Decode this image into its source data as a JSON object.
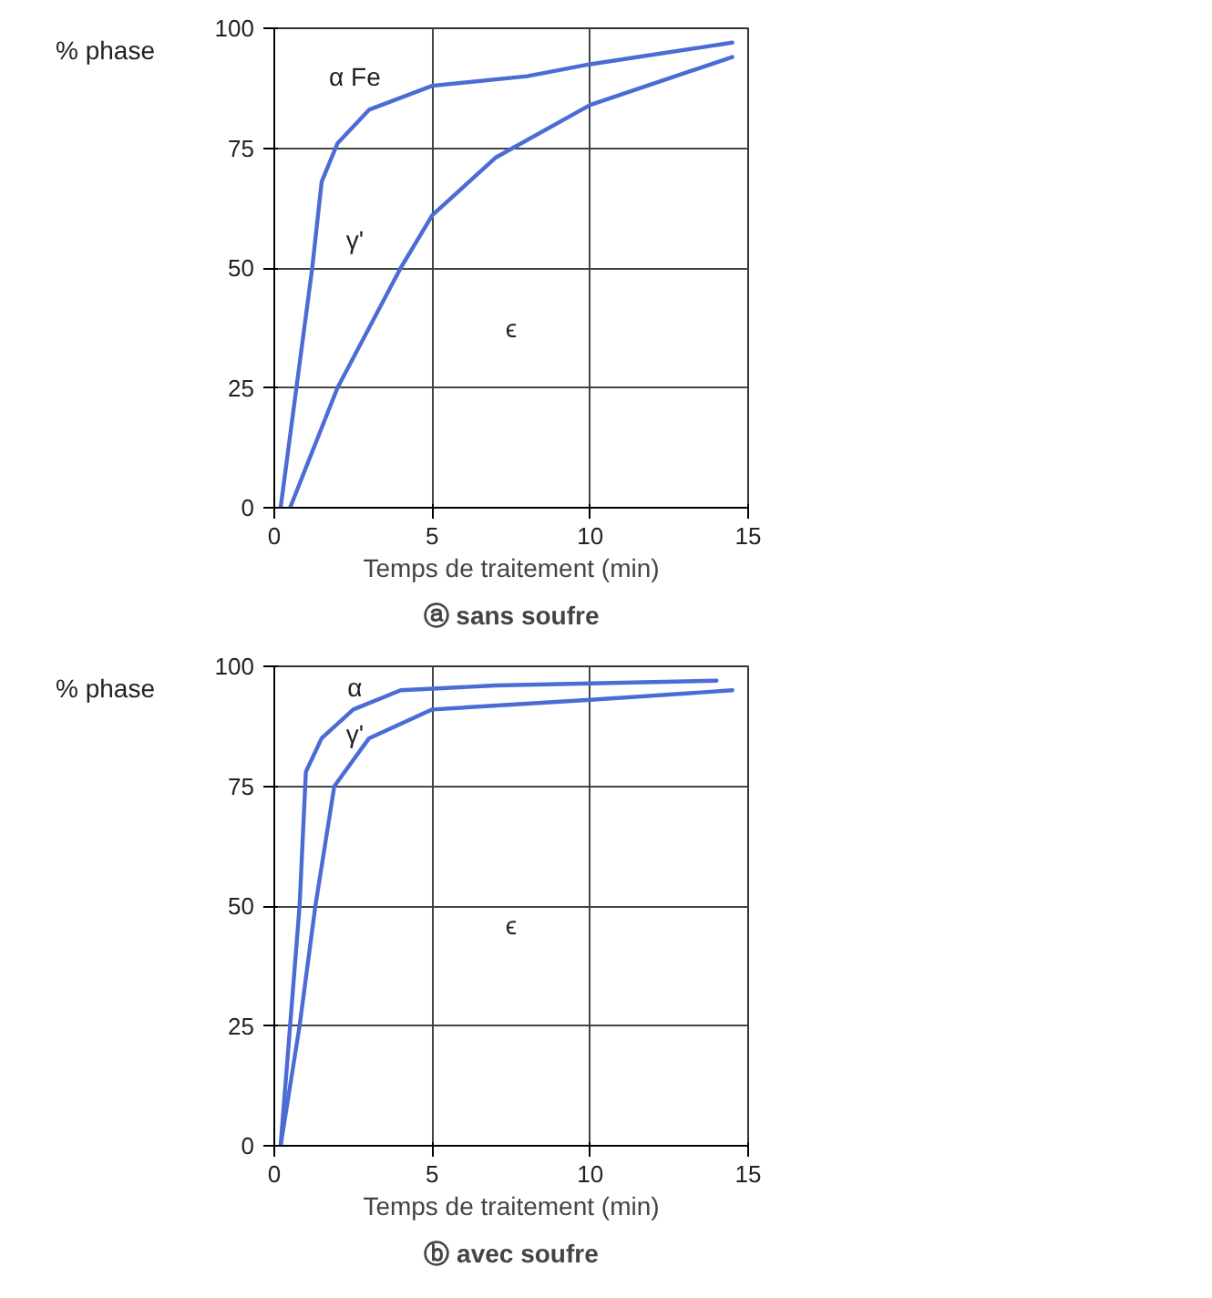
{
  "chart_data": [
    {
      "type": "line",
      "title": "ⓐ sans soufre",
      "xlabel": "Temps de traitement (min)",
      "ylabel": "% phase",
      "xlim": [
        0,
        15
      ],
      "ylim": [
        0,
        100
      ],
      "xticks": [
        0,
        5,
        10,
        15
      ],
      "yticks": [
        0,
        25,
        50,
        75,
        100
      ],
      "grid": true,
      "series": [
        {
          "color": "#4a6cd4",
          "x": [
            0.2,
            0.7,
            1.2,
            1.5,
            2,
            3,
            5,
            8,
            10,
            14.5
          ],
          "values": [
            0,
            25,
            50,
            68,
            76,
            83,
            88,
            90,
            92.5,
            97
          ]
        },
        {
          "color": "#4a6cd4",
          "x": [
            0.5,
            2,
            4,
            5,
            7,
            10,
            14.5
          ],
          "values": [
            0,
            25,
            50,
            61,
            73,
            84,
            94
          ]
        }
      ],
      "annotations": [
        "α Fe",
        "γ'",
        "ϵ"
      ]
    },
    {
      "type": "line",
      "title": "ⓑ avec soufre",
      "xlabel": "Temps de traitement (min)",
      "ylabel": "% phase",
      "xlim": [
        0,
        15
      ],
      "ylim": [
        0,
        100
      ],
      "xticks": [
        0,
        5,
        10,
        15
      ],
      "yticks": [
        0,
        25,
        50,
        75,
        100
      ],
      "grid": true,
      "series": [
        {
          "color": "#4a6cd4",
          "x": [
            0.2,
            0.5,
            0.8,
            1,
            1.5,
            2.5,
            4,
            7,
            14
          ],
          "values": [
            0,
            25,
            50,
            78,
            85,
            91,
            95,
            96,
            97
          ]
        },
        {
          "color": "#4a6cd4",
          "x": [
            0.2,
            0.8,
            1.3,
            1.9,
            3,
            5,
            10,
            14.5
          ],
          "values": [
            0,
            25,
            50,
            75,
            85,
            91,
            93,
            95
          ]
        }
      ],
      "annotations": [
        "α",
        "γ'",
        "ϵ"
      ]
    }
  ]
}
